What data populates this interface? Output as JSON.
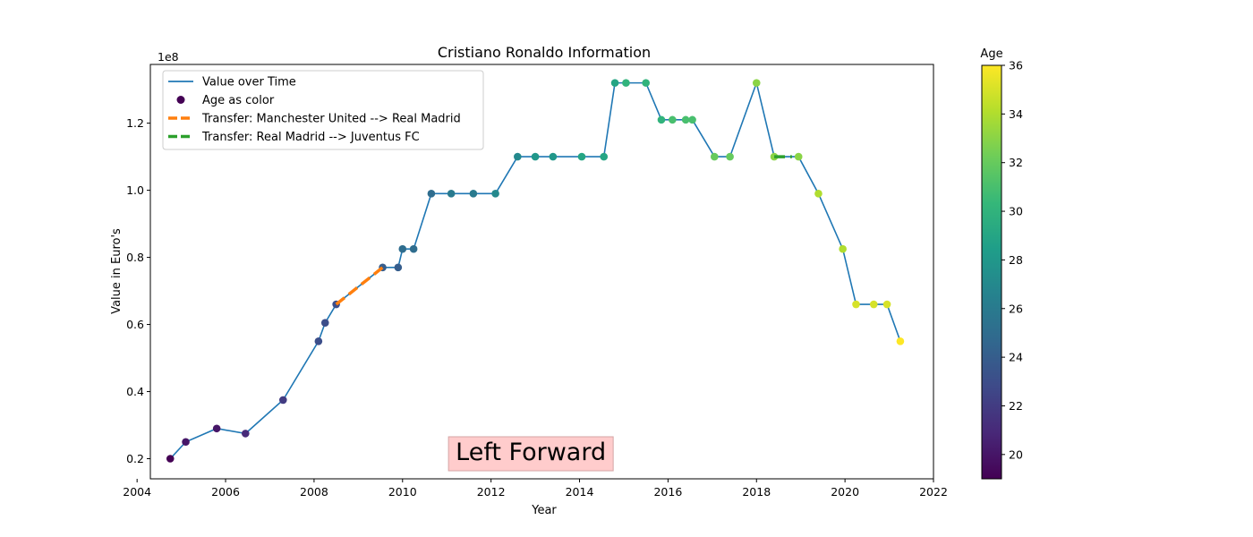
{
  "chart_data": {
    "type": "line",
    "title": "Cristiano Ronaldo Information",
    "xlabel": "Year",
    "ylabel": "Value in Euro's",
    "y_offset_label": "1e8",
    "xlim": [
      2004.3,
      2022.0
    ],
    "ylim": [
      0.14,
      1.375
    ],
    "x_ticks": [
      2004,
      2006,
      2008,
      2010,
      2012,
      2014,
      2016,
      2018,
      2020,
      2022
    ],
    "y_ticks": [
      0.2,
      0.4,
      0.6,
      0.8,
      1.0,
      1.2
    ],
    "y_unit_multiplier": 100000000,
    "grid": false,
    "legend_position": "top-left",
    "series": [
      {
        "name": "Value over Time",
        "color": "#1f77b4",
        "style": "line",
        "x": [
          2004.75,
          2005.1,
          2005.8,
          2006.45,
          2007.3,
          2008.1,
          2008.25,
          2008.5,
          2009.55,
          2009.9,
          2010.0,
          2010.25,
          2010.65,
          2011.1,
          2011.6,
          2012.1,
          2012.6,
          2013.0,
          2013.4,
          2014.05,
          2014.55,
          2014.8,
          2015.05,
          2015.5,
          2015.85,
          2016.1,
          2016.4,
          2016.55,
          2017.05,
          2017.4,
          2018.0,
          2018.4,
          2018.95,
          2019.4,
          2019.95,
          2020.25,
          2020.65,
          2020.95,
          2021.25
        ],
        "y": [
          0.2,
          0.25,
          0.29,
          0.275,
          0.375,
          0.55,
          0.605,
          0.66,
          0.77,
          0.77,
          0.825,
          0.825,
          0.99,
          0.99,
          0.99,
          0.99,
          1.1,
          1.1,
          1.1,
          1.1,
          1.1,
          1.32,
          1.32,
          1.32,
          1.21,
          1.21,
          1.21,
          1.21,
          1.1,
          1.1,
          1.32,
          1.1,
          1.1,
          0.99,
          0.825,
          0.66,
          0.66,
          0.66,
          0.55
        ]
      },
      {
        "name": "Age as color",
        "style": "scatter",
        "colormap": "viridis",
        "x": [
          2004.75,
          2005.1,
          2005.8,
          2006.45,
          2007.3,
          2008.1,
          2008.25,
          2008.5,
          2009.55,
          2009.9,
          2010.0,
          2010.25,
          2010.65,
          2011.1,
          2011.6,
          2012.1,
          2012.6,
          2013.0,
          2013.4,
          2014.05,
          2014.55,
          2014.8,
          2015.05,
          2015.5,
          2015.85,
          2016.1,
          2016.4,
          2016.55,
          2017.05,
          2017.4,
          2018.0,
          2018.4,
          2018.95,
          2019.4,
          2019.95,
          2020.25,
          2020.65,
          2020.95,
          2021.25
        ],
        "y": [
          0.2,
          0.25,
          0.29,
          0.275,
          0.375,
          0.55,
          0.605,
          0.66,
          0.77,
          0.77,
          0.825,
          0.825,
          0.99,
          0.99,
          0.99,
          0.99,
          1.1,
          1.1,
          1.1,
          1.1,
          1.1,
          1.32,
          1.32,
          1.32,
          1.21,
          1.21,
          1.21,
          1.21,
          1.1,
          1.1,
          1.32,
          1.1,
          1.1,
          0.99,
          0.825,
          0.66,
          0.66,
          0.66,
          0.55
        ],
        "age": [
          19,
          20,
          20,
          21,
          22,
          23,
          23,
          23,
          24,
          24,
          25,
          25,
          25,
          26,
          26,
          27,
          27,
          28,
          28,
          29,
          29,
          29,
          30,
          30,
          30,
          31,
          31,
          31,
          32,
          32,
          33,
          33,
          33,
          34,
          34,
          35,
          35,
          35,
          36
        ]
      },
      {
        "name": "Transfer: Manchester United --> Real Madrid",
        "color": "#ff7f0e",
        "style": "dashed",
        "x": [
          2008.5,
          2009.55
        ],
        "y": [
          0.66,
          0.77
        ]
      },
      {
        "name": "Transfer: Real Madrid --> Juventus FC",
        "color": "#2ca02c",
        "style": "dashed",
        "x": [
          2018.4,
          2018.8
        ],
        "y": [
          1.1,
          1.1
        ]
      }
    ],
    "colorbar": {
      "label": "Age",
      "min": 19,
      "max": 36,
      "ticks": [
        20,
        22,
        24,
        26,
        28,
        30,
        32,
        34,
        36
      ]
    },
    "annotation": {
      "text": "Left Forward",
      "x": 2012.9,
      "y": 0.22,
      "box_color": "#ffcccc"
    }
  }
}
